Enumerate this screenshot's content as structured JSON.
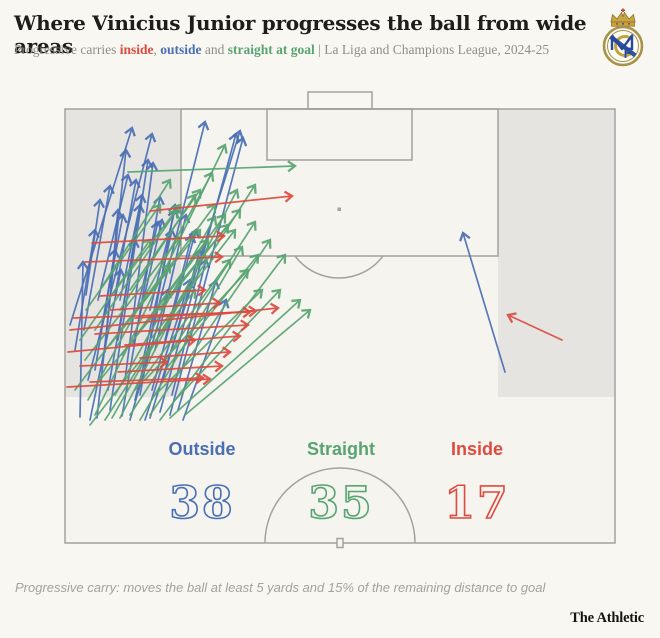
{
  "header": {
    "title": "Where Vinicius Junior progresses the ball from wide areas",
    "subtitle_prefix": "Progressive carries ",
    "inside_word": "inside",
    "sep1": ", ",
    "outside_word": "outside",
    "sep2": " and ",
    "straight_word": "straight at goal",
    "subtitle_suffix": " | La Liga and Champions League, 2024-25"
  },
  "footer": {
    "note": "Progressive carry: moves the ball at least 5 yards and 15% of the remaining distance to goal",
    "brand": "The Athletic"
  },
  "colors": {
    "background": "#f8f7f1",
    "pitch_fill": "#f5f4ee",
    "zone": "#e5e4e1",
    "pitch_line": "#a3a29d",
    "title": "#1e1d1b",
    "muted": "#8f8e89",
    "outside": "#4a6fb5",
    "straight": "#58a472",
    "inside": "#dd4b3f"
  },
  "chart_data": {
    "type": "pitch-arrow-map",
    "title": "Where Vinicius Junior progresses the ball from wide areas",
    "subtitle": "Progressive carries inside, outside and straight at goal | La Liga and Champions League, 2024-25",
    "direction_of_play": "attacking the goal at the top of the half-pitch",
    "legend": [
      {
        "label": "Outside",
        "count": 38,
        "color": "#4a6fb5"
      },
      {
        "label": "Straight",
        "count": 35,
        "color": "#58a472"
      },
      {
        "label": "Inside",
        "count": 17,
        "color": "#dd4b3f"
      }
    ],
    "coordinate_note": "arrow segments [x1,y1,x2,y2] in rendered pixel coordinates; goal line y=109, halfway line y=543, pitch x 65-615; shaded wide channels x 65-181 and x 498-615 from y 109 to 397",
    "arrows": {
      "outside": [
        [
          70,
          325,
          132,
          128
        ],
        [
          97,
          418,
          126,
          150
        ],
        [
          88,
          380,
          152,
          134
        ],
        [
          110,
          410,
          148,
          160
        ],
        [
          122,
          416,
          160,
          197
        ],
        [
          135,
          400,
          205,
          122
        ],
        [
          150,
          418,
          240,
          131
        ],
        [
          160,
          412,
          236,
          134
        ],
        [
          170,
          415,
          243,
          138
        ],
        [
          105,
          352,
          118,
          210
        ],
        [
          84,
          330,
          110,
          186
        ],
        [
          80,
          417,
          83,
          262
        ],
        [
          125,
          380,
          153,
          163
        ],
        [
          140,
          395,
          175,
          205
        ],
        [
          118,
          340,
          140,
          205
        ],
        [
          152,
          390,
          196,
          230
        ],
        [
          98,
          300,
          128,
          175
        ],
        [
          133,
          345,
          162,
          220
        ],
        [
          163,
          380,
          200,
          250
        ],
        [
          90,
          420,
          121,
          270
        ],
        [
          145,
          420,
          190,
          280
        ],
        [
          108,
          390,
          135,
          240
        ],
        [
          120,
          300,
          142,
          195
        ],
        [
          155,
          350,
          186,
          215
        ],
        [
          95,
          370,
          115,
          250
        ],
        [
          130,
          420,
          168,
          290
        ],
        [
          75,
          350,
          95,
          230
        ],
        [
          142,
          365,
          172,
          230
        ],
        [
          178,
          410,
          216,
          281
        ],
        [
          115,
          295,
          136,
          180
        ],
        [
          86,
          295,
          100,
          200
        ],
        [
          172,
          395,
          206,
          260
        ],
        [
          150,
          310,
          175,
          210
        ],
        [
          100,
          335,
          123,
          215
        ],
        [
          165,
          340,
          192,
          235
        ],
        [
          183,
          420,
          226,
          300
        ],
        [
          137,
          310,
          158,
          222
        ],
        [
          505,
          372,
          463,
          233
        ]
      ],
      "straight": [
        [
          95,
          415,
          225,
          145
        ],
        [
          105,
          420,
          255,
          185
        ],
        [
          120,
          418,
          237,
          190
        ],
        [
          88,
          400,
          212,
          173
        ],
        [
          100,
          380,
          228,
          225
        ],
        [
          115,
          395,
          215,
          217
        ],
        [
          130,
          415,
          255,
          222
        ],
        [
          140,
          420,
          242,
          247
        ],
        [
          85,
          360,
          180,
          237
        ],
        [
          128,
          172,
          295,
          166
        ],
        [
          150,
          415,
          270,
          240
        ],
        [
          160,
          420,
          285,
          255
        ],
        [
          95,
          330,
          177,
          210
        ],
        [
          110,
          345,
          200,
          230
        ],
        [
          135,
          390,
          230,
          260
        ],
        [
          75,
          390,
          170,
          265
        ],
        [
          145,
          380,
          248,
          270
        ],
        [
          120,
          310,
          195,
          195
        ],
        [
          86,
          310,
          160,
          205
        ],
        [
          155,
          395,
          262,
          290
        ],
        [
          170,
          418,
          300,
          300
        ],
        [
          100,
          290,
          170,
          180
        ],
        [
          140,
          330,
          225,
          215
        ],
        [
          165,
          370,
          258,
          255
        ],
        [
          80,
          340,
          150,
          240
        ],
        [
          130,
          290,
          200,
          190
        ],
        [
          112,
          418,
          205,
          255
        ],
        [
          150,
          340,
          235,
          230
        ],
        [
          90,
          425,
          195,
          290
        ],
        [
          175,
          400,
          280,
          290
        ],
        [
          108,
          300,
          180,
          205
        ],
        [
          122,
          355,
          208,
          240
        ],
        [
          160,
          310,
          240,
          210
        ],
        [
          145,
          300,
          215,
          205
        ],
        [
          185,
          415,
          310,
          310
        ]
      ],
      "inside": [
        [
          150,
          211,
          292,
          196
        ],
        [
          92,
          243,
          224,
          236
        ],
        [
          85,
          262,
          222,
          257
        ],
        [
          70,
          330,
          278,
          308
        ],
        [
          73,
          318,
          250,
          312
        ],
        [
          95,
          334,
          248,
          325
        ],
        [
          68,
          352,
          195,
          340
        ],
        [
          80,
          366,
          167,
          362
        ],
        [
          90,
          382,
          203,
          378
        ],
        [
          67,
          387,
          210,
          379
        ],
        [
          110,
          310,
          220,
          303
        ],
        [
          125,
          345,
          240,
          336
        ],
        [
          140,
          358,
          230,
          352
        ],
        [
          100,
          296,
          205,
          290
        ],
        [
          135,
          318,
          256,
          311
        ],
        [
          118,
          372,
          222,
          366
        ],
        [
          562,
          340,
          508,
          315
        ]
      ]
    }
  }
}
